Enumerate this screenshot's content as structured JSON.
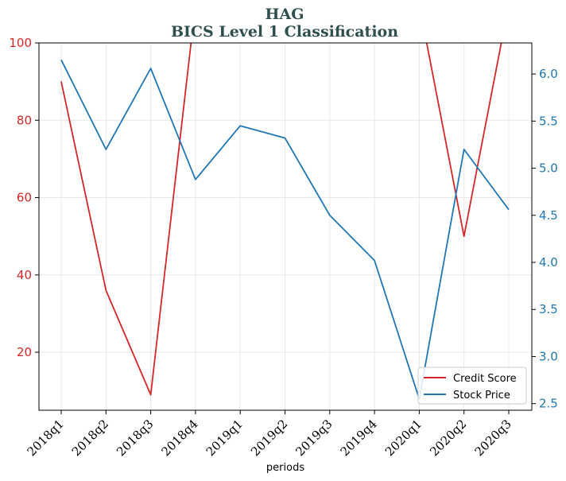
{
  "chart_data": {
    "type": "line",
    "title": "HAG",
    "subtitle": "BICS Level 1 Classification",
    "xlabel": "periods",
    "ylabel_left": "",
    "ylabel_right": "",
    "categories": [
      "2018q1",
      "2018q2",
      "2018q3",
      "2018q4",
      "2019q1",
      "2019q2",
      "2019q3",
      "2019q4",
      "2020q1",
      "2020q2",
      "2020q3"
    ],
    "series": [
      {
        "name": "Credit Score",
        "axis": "left",
        "color": "#d62728",
        "values": [
          90,
          36,
          9,
          110,
          null,
          null,
          null,
          null,
          110,
          50,
          110
        ]
      },
      {
        "name": "Stock Price",
        "axis": "right",
        "color": "#1f77b4",
        "values": [
          6.15,
          5.2,
          6.06,
          4.88,
          5.45,
          5.32,
          4.5,
          4.02,
          2.55,
          5.2,
          4.56
        ]
      }
    ],
    "ylim_left": [
      5,
      100
    ],
    "ylim_right": [
      2.43,
      6.33
    ],
    "yticks_left": [
      20,
      40,
      60,
      80,
      100
    ],
    "yticks_right": [
      2.5,
      3.0,
      3.5,
      4.0,
      4.5,
      5.0,
      5.5,
      6.0
    ],
    "ytick_labels_right": [
      "2.5",
      "3.0",
      "3.5",
      "4.0",
      "4.5",
      "5.0",
      "5.5",
      "6.0"
    ],
    "grid": true,
    "legend_position": "bottom-right"
  }
}
